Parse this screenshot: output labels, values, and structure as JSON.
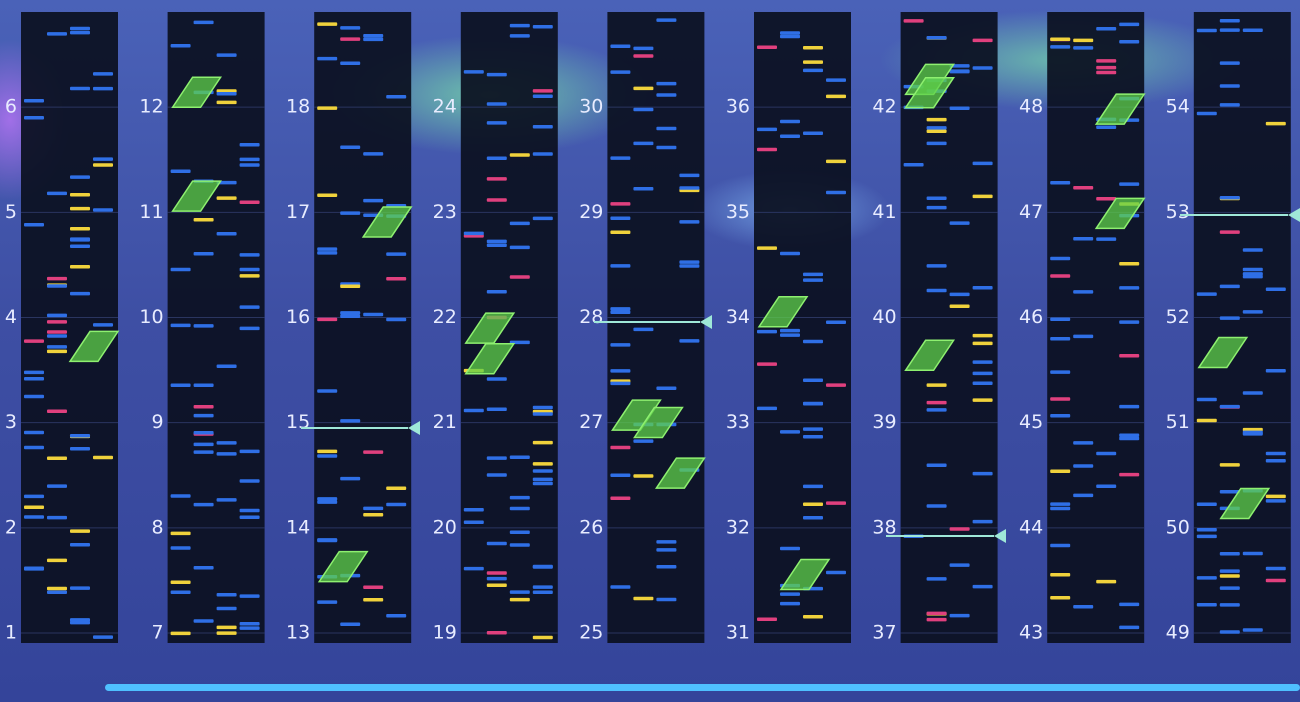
{
  "columns": [
    {
      "measures": [
        1,
        2,
        3,
        4,
        5,
        6
      ]
    },
    {
      "measures": [
        7,
        8,
        9,
        10,
        11,
        12
      ]
    },
    {
      "measures": [
        13,
        14,
        15,
        16,
        17,
        18
      ]
    },
    {
      "measures": [
        19,
        20,
        21,
        22,
        23,
        24
      ]
    },
    {
      "measures": [
        25,
        26,
        27,
        28,
        29,
        30
      ]
    },
    {
      "measures": [
        31,
        32,
        33,
        34,
        35,
        36
      ]
    },
    {
      "measures": [
        37,
        38,
        39,
        40,
        41,
        42
      ]
    },
    {
      "measures": [
        43,
        44,
        45,
        46,
        47,
        48
      ]
    },
    {
      "measures": [
        49,
        50,
        51,
        52,
        53,
        54
      ]
    }
  ]
}
